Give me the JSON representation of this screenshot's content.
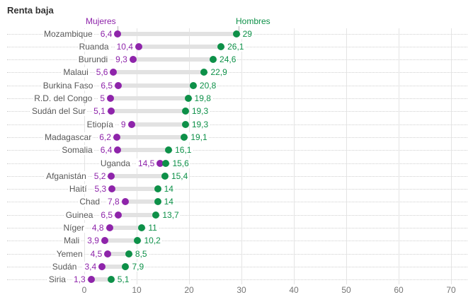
{
  "title": "Renta baja",
  "legend": {
    "mujeres": "Mujeres",
    "hombres": "Hombres"
  },
  "colors": {
    "mujeres": "#8e24aa",
    "hombres": "#0d9048",
    "connector": "#e2e2e2",
    "gridline": "#e4e4e4",
    "category_label": "#575757",
    "axis_label": "#757575"
  },
  "chart_data": {
    "type": "dumbbell",
    "title": "Renta baja",
    "categories": [
      "Mozambique",
      "Ruanda",
      "Burundi",
      "Malaui",
      "Burkina Faso",
      "R.D. del Congo",
      "Sudán del Sur",
      "Etiopía",
      "Madagascar",
      "Somalia",
      "Uganda",
      "Afganistán",
      "Haití",
      "Chad",
      "Guinea",
      "Níger",
      "Mali",
      "Yemen",
      "Sudán",
      "Siria"
    ],
    "series": [
      {
        "name": "Mujeres",
        "values": [
          6.4,
          10.4,
          9.3,
          5.6,
          6.5,
          5,
          5.1,
          9,
          6.2,
          6.4,
          14.5,
          5.2,
          5.3,
          7.8,
          6.5,
          4.8,
          3.9,
          4.5,
          3.4,
          1.3
        ],
        "labels": [
          "6,4",
          "10,4",
          "9,3",
          "5,6",
          "6,5",
          "5",
          "5,1",
          "9",
          "6,2",
          "6,4",
          "14,5",
          "5,2",
          "5,3",
          "7,8",
          "6,5",
          "4,8",
          "3,9",
          "4,5",
          "3,4",
          "1,3"
        ]
      },
      {
        "name": "Hombres",
        "values": [
          29,
          26.1,
          24.6,
          22.9,
          20.8,
          19.8,
          19.3,
          19.3,
          19.1,
          16.1,
          15.6,
          15.4,
          14,
          14,
          13.7,
          11,
          10.2,
          8.5,
          7.9,
          5.1
        ],
        "labels": [
          "29",
          "26,1",
          "24,6",
          "22,9",
          "20,8",
          "19,8",
          "19,3",
          "19,3",
          "19,1",
          "16,1",
          "15,6",
          "15,4",
          "14",
          "14",
          "13,7",
          "11",
          "10,2",
          "8,5",
          "7,9",
          "5,1"
        ]
      }
    ],
    "xticks": [
      0,
      10,
      20,
      30,
      40,
      50,
      60,
      70
    ],
    "xlim": [
      0,
      70
    ],
    "xlabel": "",
    "ylabel": "",
    "grid": "vertical",
    "legend_position": "top"
  }
}
